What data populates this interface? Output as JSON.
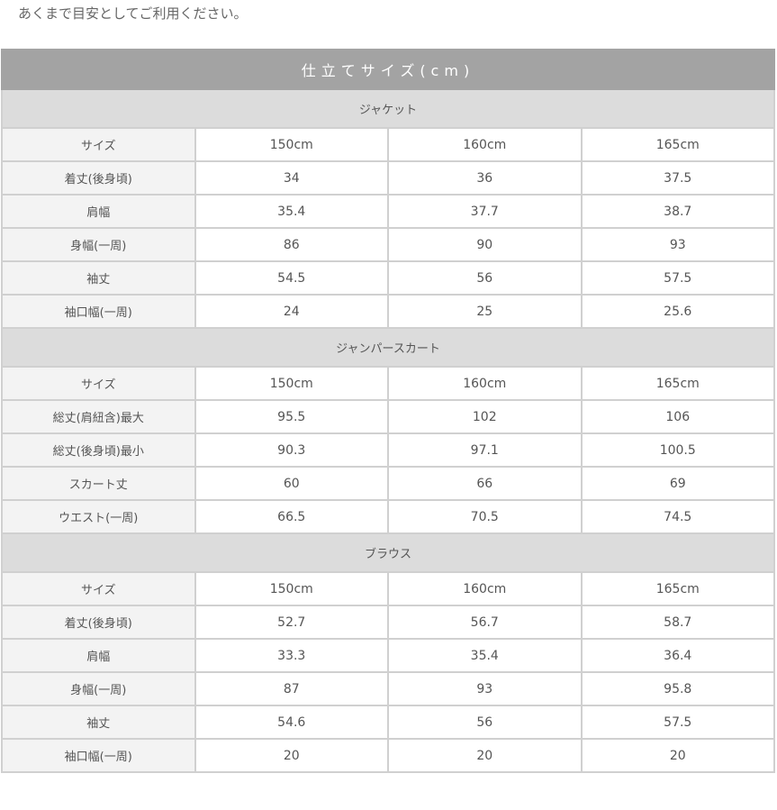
{
  "note": "あくまで目安としてご利用ください。",
  "title": "仕立てサイズ(cm)",
  "sections": [
    {
      "name": "ジャケット",
      "rows": [
        {
          "label": "サイズ",
          "values": [
            "150cm",
            "160cm",
            "165cm"
          ]
        },
        {
          "label": "着丈(後身頃)",
          "values": [
            "34",
            "36",
            "37.5"
          ]
        },
        {
          "label": "肩幅",
          "values": [
            "35.4",
            "37.7",
            "38.7"
          ]
        },
        {
          "label": "身幅(一周)",
          "values": [
            "86",
            "90",
            "93"
          ]
        },
        {
          "label": "袖丈",
          "values": [
            "54.5",
            "56",
            "57.5"
          ]
        },
        {
          "label": "袖口幅(一周)",
          "values": [
            "24",
            "25",
            "25.6"
          ]
        }
      ]
    },
    {
      "name": "ジャンパースカート",
      "rows": [
        {
          "label": "サイズ",
          "values": [
            "150cm",
            "160cm",
            "165cm"
          ]
        },
        {
          "label": "総丈(肩紐含)最大",
          "values": [
            "95.5",
            "102",
            "106"
          ]
        },
        {
          "label": "総丈(後身頃)最小",
          "values": [
            "90.3",
            "97.1",
            "100.5"
          ]
        },
        {
          "label": "スカート丈",
          "values": [
            "60",
            "66",
            "69"
          ]
        },
        {
          "label": "ウエスト(一周)",
          "values": [
            "66.5",
            "70.5",
            "74.5"
          ]
        }
      ]
    },
    {
      "name": "ブラウス",
      "rows": [
        {
          "label": "サイズ",
          "values": [
            "150cm",
            "160cm",
            "165cm"
          ]
        },
        {
          "label": "着丈(後身頃)",
          "values": [
            "52.7",
            "56.7",
            "58.7"
          ]
        },
        {
          "label": "肩幅",
          "values": [
            "33.3",
            "35.4",
            "36.4"
          ]
        },
        {
          "label": "身幅(一周)",
          "values": [
            "87",
            "93",
            "95.8"
          ]
        },
        {
          "label": "袖丈",
          "values": [
            "54.6",
            "56",
            "57.5"
          ]
        },
        {
          "label": "袖口幅(一周)",
          "values": [
            "20",
            "20",
            "20"
          ]
        }
      ]
    }
  ]
}
